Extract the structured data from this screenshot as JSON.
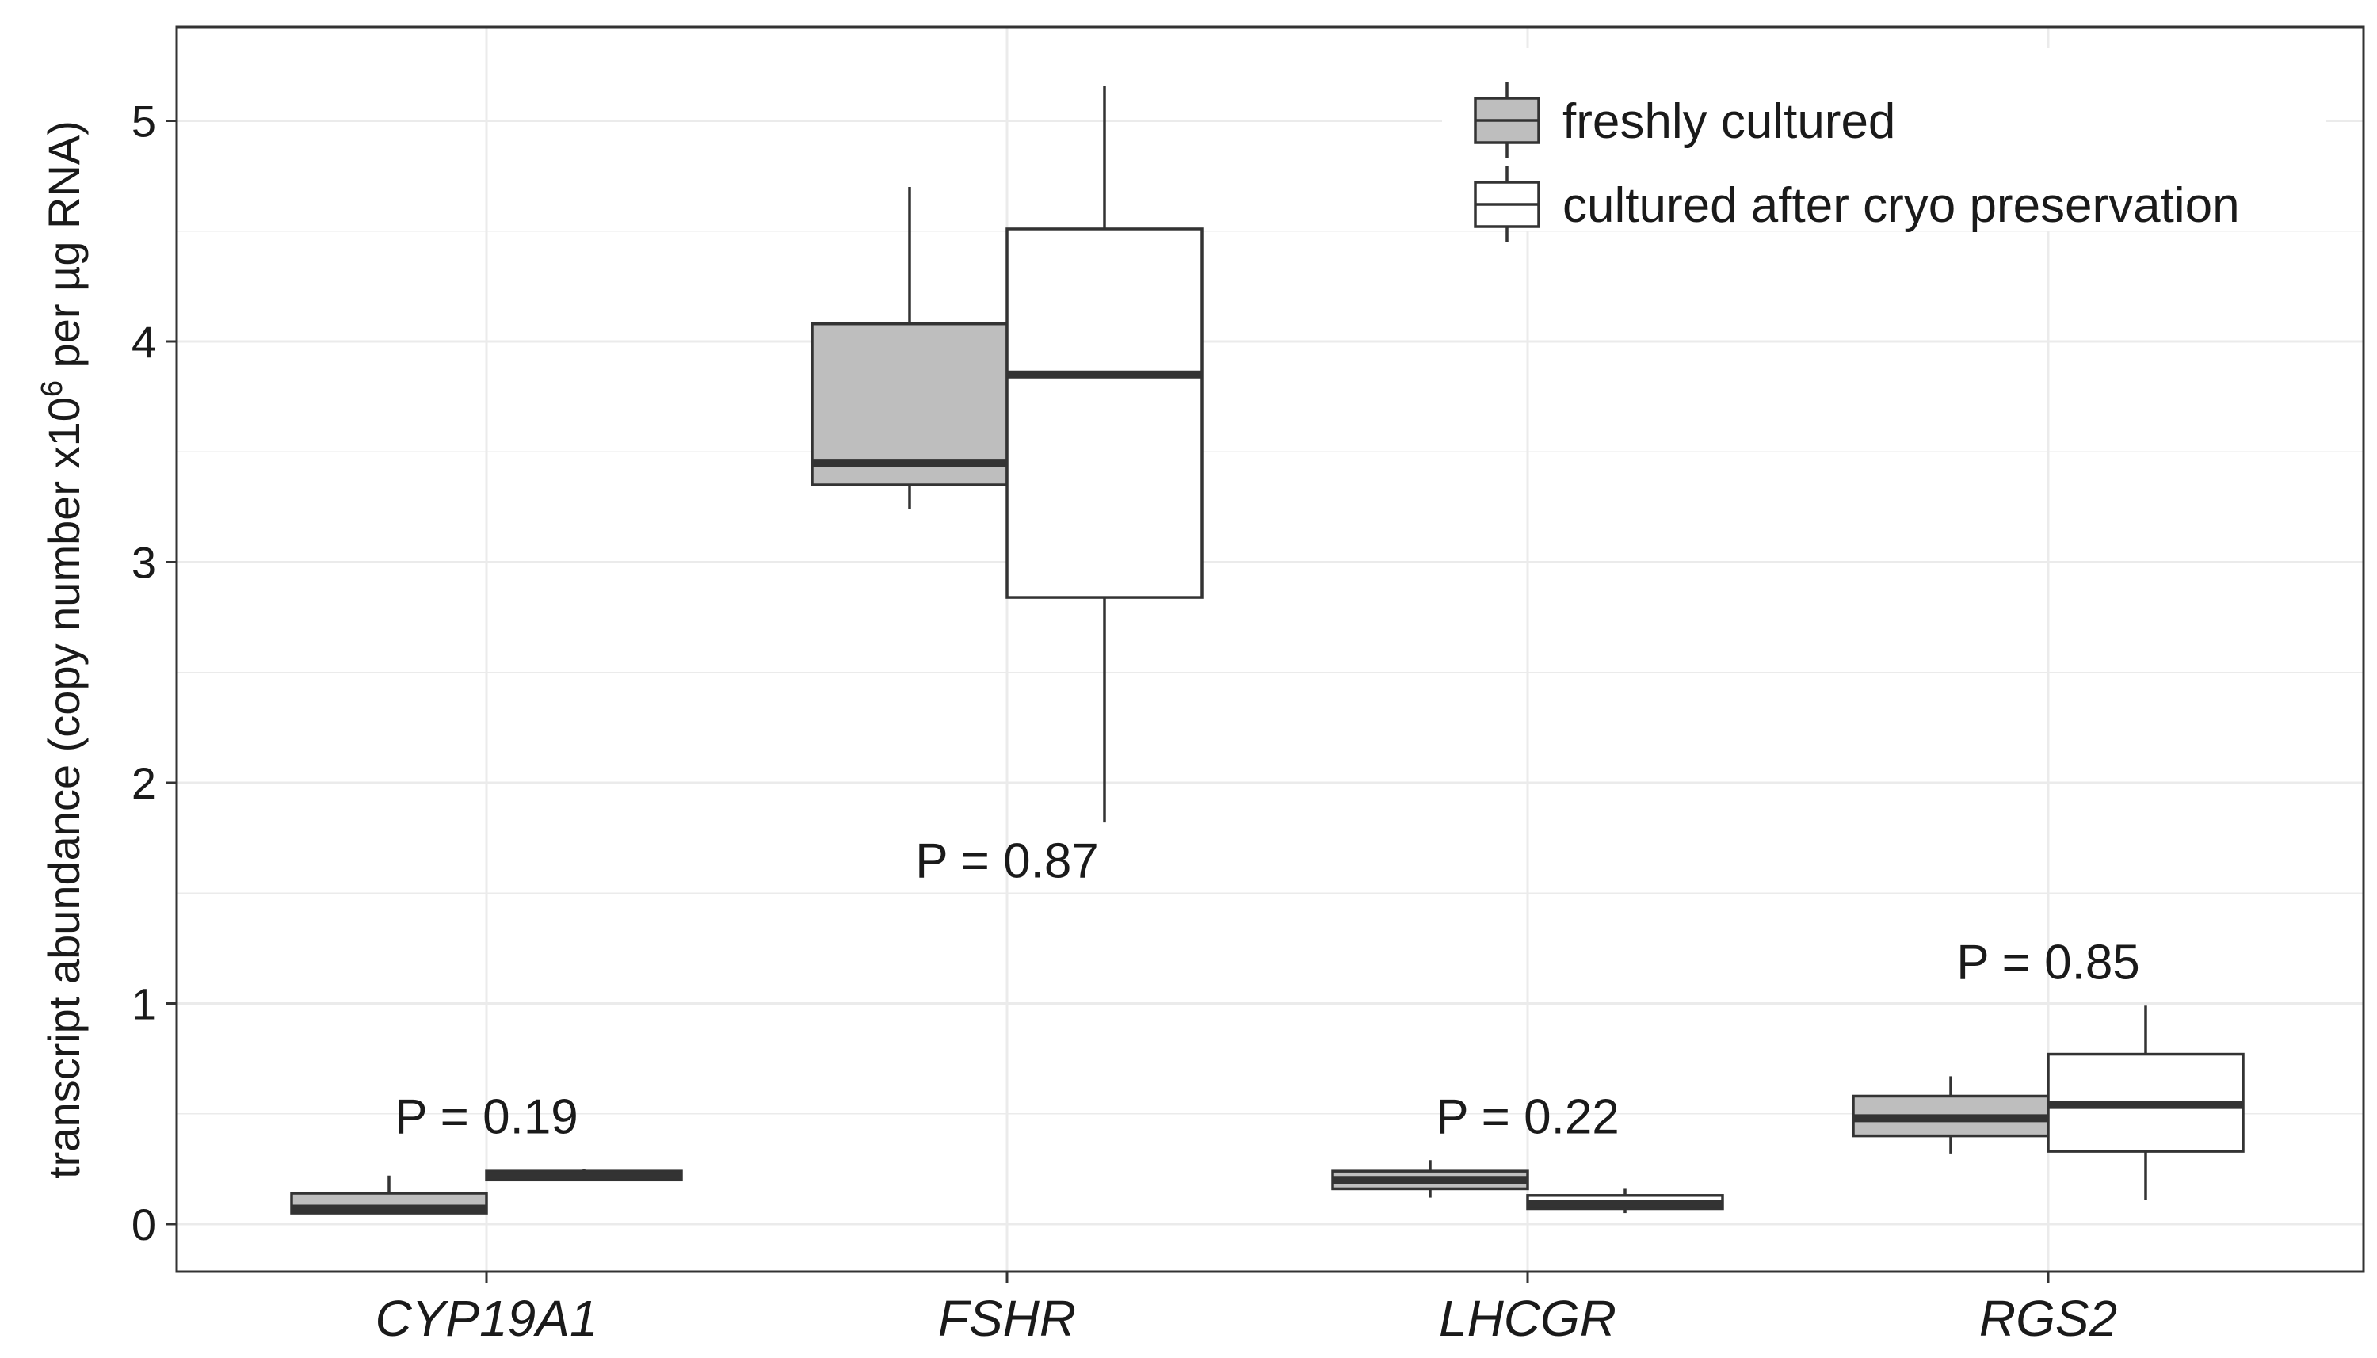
{
  "chart_data": {
    "type": "boxplot",
    "categories": [
      "CYP19A1",
      "FSHR",
      "LHCGR",
      "RGS2"
    ],
    "ylabel_prefix": "transcript abundance (copy number x10",
    "ylabel_superscript": "6",
    "ylabel_suffix": " per µg RNA)",
    "xlabel": "",
    "ylim": [
      -0.2,
      5.4
    ],
    "yticks": [
      0,
      1,
      2,
      3,
      4,
      5
    ],
    "grid": true,
    "legend_position": "top-right",
    "series": [
      {
        "name": "freshly cultured",
        "fill": "#bebebe",
        "boxes": [
          {
            "whisker_low": 0.05,
            "q1": 0.05,
            "median": 0.07,
            "q3": 0.14,
            "whisker_high": 0.22
          },
          {
            "whisker_low": 3.24,
            "q1": 3.35,
            "median": 3.45,
            "q3": 4.08,
            "whisker_high": 4.7
          },
          {
            "whisker_low": 0.12,
            "q1": 0.16,
            "median": 0.2,
            "q3": 0.24,
            "whisker_high": 0.29
          },
          {
            "whisker_low": 0.32,
            "q1": 0.4,
            "median": 0.48,
            "q3": 0.58,
            "whisker_high": 0.67
          }
        ]
      },
      {
        "name": "cultured after cryo preservation",
        "fill": "#ffffff",
        "boxes": [
          {
            "whisker_low": 0.2,
            "q1": 0.2,
            "median": 0.22,
            "q3": 0.24,
            "whisker_high": 0.25
          },
          {
            "whisker_low": 1.82,
            "q1": 2.84,
            "median": 3.85,
            "q3": 4.51,
            "whisker_high": 5.16
          },
          {
            "whisker_low": 0.05,
            "q1": 0.07,
            "median": 0.09,
            "q3": 0.13,
            "whisker_high": 0.16
          },
          {
            "whisker_low": 0.11,
            "q1": 0.33,
            "median": 0.54,
            "q3": 0.77,
            "whisker_high": 0.99
          }
        ]
      }
    ],
    "annotations": [
      {
        "category": "CYP19A1",
        "text": "P = 0.19",
        "y": 0.49
      },
      {
        "category": "FSHR",
        "text": "P = 0.87",
        "y": 1.65
      },
      {
        "category": "LHCGR",
        "text": "P = 0.22",
        "y": 0.49
      },
      {
        "category": "RGS2",
        "text": "P = 0.85",
        "y": 1.19
      }
    ]
  }
}
